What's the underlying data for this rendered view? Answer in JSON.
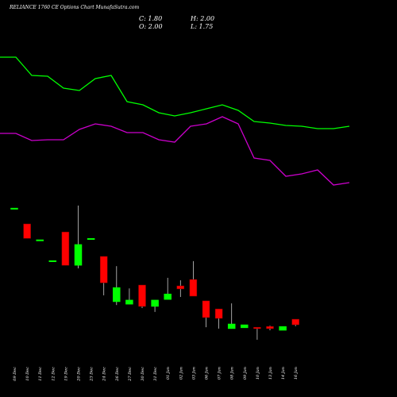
{
  "chart_data": {
    "type": "candlestick",
    "title": "RELIANCE 1760  CE Options  Chart MunafaSutra.com",
    "stats": [
      "C: 1.80",
      "H: 2.00",
      "O: 2.00",
      "L: 1.75"
    ],
    "categories": [
      "09 Dec",
      "10 Dec",
      "11 Dec",
      "12 Dec",
      "19 Dec",
      "20 Dec",
      "23 Dec",
      "24 Dec",
      "26 Dec",
      "27 Dec",
      "30 Dec",
      "31 Dec",
      "01 Jan",
      "02 Jan",
      "03 Jan",
      "06 Jan",
      "07 Jan",
      "08 Jan",
      "09 Jan",
      "10 Jan",
      "13 Jan",
      "14 Jan",
      "16 Jan"
    ],
    "open": [
      6.0,
      5.43,
      4.86,
      4.11,
      5.14,
      3.94,
      4.91,
      4.26,
      2.63,
      2.54,
      3.23,
      2.46,
      2.71,
      3.2,
      3.43,
      2.66,
      2.37,
      1.66,
      1.69,
      1.71,
      1.74,
      1.6,
      2.0
    ],
    "close": [
      6.0,
      4.91,
      4.86,
      4.11,
      3.94,
      4.69,
      4.91,
      3.31,
      3.14,
      2.69,
      2.46,
      2.69,
      2.91,
      3.09,
      2.83,
      2.06,
      2.03,
      1.83,
      1.8,
      1.66,
      1.66,
      1.74,
      1.8
    ],
    "high": [
      6.0,
      5.43,
      4.86,
      4.11,
      5.14,
      6.09,
      4.91,
      4.26,
      3.91,
      3.11,
      3.23,
      2.69,
      3.49,
      3.4,
      4.09,
      2.66,
      2.37,
      2.57,
      1.8,
      1.71,
      1.77,
      1.74,
      2.0
    ],
    "low": [
      6.0,
      4.91,
      4.86,
      4.11,
      3.94,
      3.83,
      4.91,
      2.86,
      2.51,
      2.54,
      2.4,
      2.26,
      2.71,
      2.8,
      2.83,
      1.71,
      1.66,
      1.66,
      1.69,
      1.26,
      1.6,
      1.6,
      1.75
    ],
    "up_color": "#00ff00",
    "down_color": "#ff0000",
    "ylim": [
      -0.8,
      13.49
    ],
    "series": [
      {
        "color": "#00ff00",
        "axis": "y2",
        "values": [
          85.6,
          85.6,
          81,
          80.8,
          77.8,
          77.2,
          80.2,
          81,
          74.4,
          73.6,
          71.6,
          70.8,
          71.6,
          72.6,
          73.6,
          72.2,
          69.4,
          69,
          68.4,
          68.2,
          67.6,
          67.6,
          68.2
        ]
      },
      {
        "color": "#cc00cc",
        "axis": "y2",
        "values": [
          66.4,
          66.4,
          64.6,
          64.8,
          64.8,
          67.4,
          68.8,
          68.2,
          66.6,
          66.6,
          64.8,
          64.2,
          68.2,
          68.8,
          70.6,
          68.8,
          60.2,
          59.6,
          55.6,
          56.2,
          57.2,
          53.4,
          54
        ]
      }
    ],
    "y2lim": [
      0,
      100
    ]
  }
}
